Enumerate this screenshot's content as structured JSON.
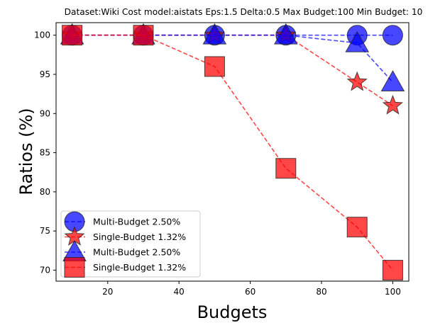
{
  "chart_data": {
    "type": "line",
    "title": "Dataset:Wiki Cost model:aistats Eps:1.5 Delta:0.5 Max Budget:100 Min Budget: 10",
    "xlabel": "Budgets",
    "ylabel": "Ratios (%)",
    "xlim": [
      5.5,
      104.5
    ],
    "ylim": [
      68.6,
      101.6
    ],
    "xticks": [
      20,
      40,
      60,
      80,
      100
    ],
    "yticks": [
      70,
      75,
      80,
      85,
      90,
      95,
      100
    ],
    "grid": false,
    "legend_position": "lower-left",
    "series": [
      {
        "name": "Multi-Budget 2.50%",
        "marker": "circle",
        "color": "#0000ff",
        "x": [
          10,
          30,
          50,
          70,
          90,
          100
        ],
        "y": [
          100,
          100,
          100,
          100,
          100,
          100
        ]
      },
      {
        "name": "Single-Budget 1.32%",
        "marker": "star",
        "color": "#ff0000",
        "x": [
          10,
          30,
          50,
          70,
          90,
          100
        ],
        "y": [
          100,
          100,
          100,
          100,
          94,
          91
        ]
      },
      {
        "name": "Multi-Budget 2.50%",
        "marker": "triangle",
        "color": "#0000ff",
        "x": [
          10,
          30,
          50,
          70,
          90,
          100
        ],
        "y": [
          100,
          100,
          100,
          100,
          99,
          94
        ]
      },
      {
        "name": "Single-Budget 1.32%",
        "marker": "square",
        "color": "#ff0000",
        "x": [
          10,
          30,
          50,
          70,
          90,
          100
        ],
        "y": [
          100,
          100,
          96,
          83,
          75.5,
          70
        ]
      }
    ]
  }
}
